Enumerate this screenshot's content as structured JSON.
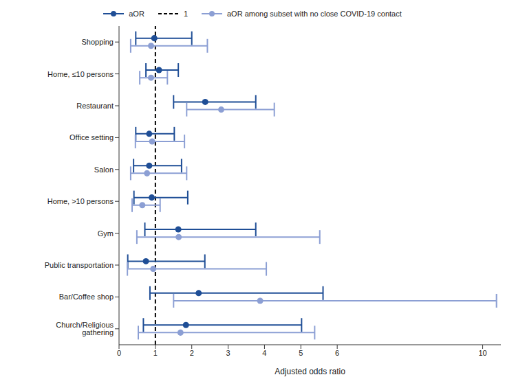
{
  "chart_data": {
    "type": "forest",
    "x_label": "Adjusted odds ratio",
    "categories": [
      "Shopping",
      "Home, ≤10 persons",
      "Restaurant",
      "Office setting",
      "Salon",
      "Home, >10 persons",
      "Gym",
      "Public transportation",
      "Bar/Coffee shop",
      "Church/Religious gathering"
    ],
    "series": [
      {
        "name": "aOR",
        "color": "#1f4e96",
        "values": [
          0.97,
          1.1,
          2.37,
          0.83,
          0.83,
          0.9,
          1.63,
          0.74,
          2.19,
          1.84
        ],
        "lower": [
          0.46,
          0.74,
          1.5,
          0.46,
          0.4,
          0.41,
          0.71,
          0.24,
          0.85,
          0.67
        ],
        "upper": [
          2.0,
          1.63,
          3.76,
          1.52,
          1.72,
          1.89,
          3.76,
          2.36,
          5.61,
          5.02
        ]
      },
      {
        "name": "aOR among subset with no close COVID-19 contact",
        "color": "#8c9fd4",
        "values": [
          0.88,
          0.88,
          2.81,
          0.91,
          0.77,
          0.64,
          1.64,
          0.94,
          3.88,
          1.69
        ],
        "lower": [
          0.32,
          0.57,
          1.86,
          0.45,
          0.32,
          0.36,
          0.49,
          0.23,
          1.5,
          0.53
        ],
        "upper": [
          2.43,
          1.33,
          4.27,
          1.8,
          1.86,
          1.13,
          5.52,
          4.05,
          10.38,
          5.38
        ]
      }
    ],
    "reference_line": {
      "name": "1",
      "value": 1
    },
    "xlim": [
      0,
      10.5
    ],
    "xticks": [
      0,
      1,
      2,
      3,
      4,
      5,
      6,
      10
    ],
    "legend": "top"
  }
}
